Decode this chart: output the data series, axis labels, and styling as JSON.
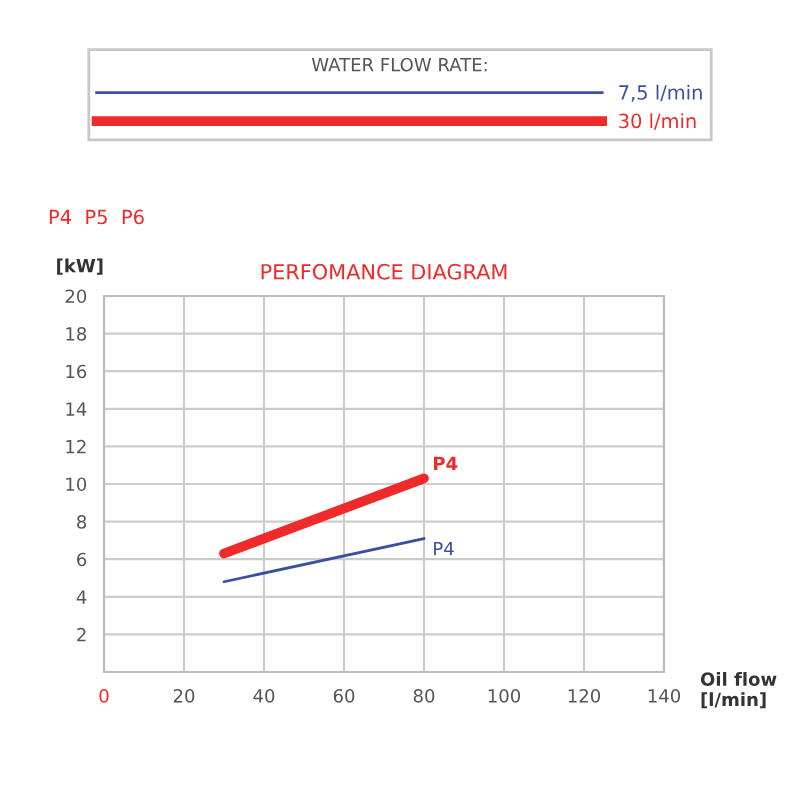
{
  "chart_data": {
    "type": "line",
    "title": "PERFOMANCE DIAGRAM",
    "subtitle": "P4  P5  P6",
    "legend_title": "WATER FLOW RATE:",
    "xlabel": "Oil flow\n[l/min]",
    "ylabel": "[kW]",
    "series": [
      {
        "name": "7,5 l/min",
        "color": "#3b4fa0",
        "values": [
          4.8,
          7.1
        ]
      },
      {
        "name": "30 l/min",
        "color": "#ee2a2a",
        "values": [
          6.3,
          10.3
        ]
      }
    ],
    "x": [
      30,
      80
    ],
    "annotations": [
      {
        "text": "P4",
        "x": 80,
        "y": 7.1
      },
      {
        "text": "P4",
        "x": 80,
        "y": 10.3
      }
    ],
    "xlim": [
      0,
      140
    ],
    "ylim": [
      0,
      20
    ],
    "xticks": [
      0,
      20,
      40,
      60,
      80,
      100,
      120,
      140
    ],
    "yticks": [
      2,
      4,
      6,
      8,
      10,
      12,
      14,
      16,
      18,
      20
    ],
    "grid": true,
    "legend": "top",
    "marker": "none",
    "line_style": "solid"
  }
}
